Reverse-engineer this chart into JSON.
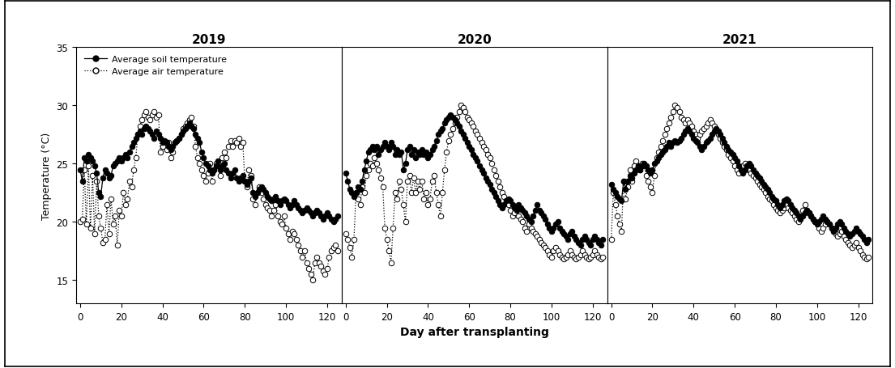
{
  "years": [
    "2019",
    "2020",
    "2021"
  ],
  "ylabel": "Temperature (°C)",
  "xlabel": "Day after transplanting",
  "ylim": [
    13,
    35
  ],
  "yticks": [
    15,
    20,
    25,
    30,
    35
  ],
  "xlim": [
    -2,
    127
  ],
  "xticks": [
    0,
    20,
    40,
    60,
    80,
    100,
    120
  ],
  "legend_soil": "Average soil temperature",
  "legend_air": "Average air temperature",
  "soil_2019": [
    24.5,
    23.5,
    25.5,
    25.2,
    25.8,
    25.5,
    25.2,
    24.8,
    24.2,
    22.5,
    22.2,
    23.8,
    24.5,
    24.2,
    23.8,
    24.0,
    24.8,
    25.0,
    25.2,
    25.5,
    25.2,
    25.5,
    25.8,
    25.5,
    26.0,
    26.5,
    26.8,
    27.2,
    27.5,
    27.8,
    27.5,
    28.0,
    28.2,
    28.0,
    27.8,
    27.5,
    27.2,
    27.8,
    27.5,
    27.2,
    26.8,
    27.0,
    26.8,
    26.5,
    26.2,
    26.5,
    26.8,
    27.0,
    27.2,
    27.5,
    27.8,
    28.0,
    28.2,
    28.5,
    28.2,
    28.0,
    27.5,
    27.2,
    26.8,
    26.0,
    25.5,
    25.0,
    24.8,
    24.5,
    24.2,
    24.5,
    24.8,
    25.2,
    24.5,
    24.8,
    25.0,
    24.5,
    24.2,
    23.8,
    24.2,
    24.5,
    23.8,
    23.5,
    23.8,
    24.0,
    23.5,
    23.2,
    23.5,
    23.8,
    22.5,
    22.2,
    22.5,
    22.8,
    23.0,
    22.8,
    22.5,
    22.2,
    22.0,
    21.8,
    22.0,
    22.2,
    21.8,
    21.5,
    21.8,
    22.0,
    21.8,
    21.5,
    21.2,
    21.5,
    21.8,
    21.5,
    21.2,
    21.0,
    20.8,
    21.0,
    21.2,
    21.0,
    20.8,
    20.5,
    20.8,
    21.0,
    20.8,
    20.5,
    20.2,
    20.5,
    20.8,
    20.5,
    20.2,
    20.0,
    20.2,
    20.5
  ],
  "air_2019": [
    20.0,
    20.2,
    24.5,
    19.8,
    24.8,
    19.5,
    24.0,
    19.0,
    23.5,
    20.5,
    19.5,
    18.2,
    18.5,
    21.5,
    19.0,
    22.0,
    19.8,
    20.5,
    18.0,
    21.0,
    20.5,
    22.5,
    21.5,
    22.0,
    23.5,
    23.0,
    24.5,
    25.5,
    27.5,
    28.2,
    28.8,
    29.2,
    29.5,
    29.0,
    28.8,
    29.2,
    29.5,
    29.0,
    29.2,
    26.0,
    26.5,
    27.0,
    26.2,
    26.8,
    25.5,
    26.0,
    26.8,
    27.0,
    27.2,
    27.5,
    28.0,
    28.2,
    28.5,
    28.8,
    29.0,
    28.2,
    26.5,
    25.5,
    25.0,
    24.5,
    24.0,
    23.5,
    24.2,
    25.0,
    23.5,
    24.5,
    25.0,
    24.8,
    24.0,
    25.5,
    26.0,
    25.5,
    26.5,
    27.0,
    26.5,
    27.0,
    26.8,
    27.2,
    26.5,
    26.8,
    23.5,
    23.0,
    24.5,
    24.0,
    22.0,
    21.5,
    22.5,
    23.0,
    22.5,
    22.0,
    21.5,
    21.2,
    21.0,
    20.5,
    21.0,
    21.5,
    20.5,
    20.0,
    19.8,
    20.5,
    19.5,
    19.0,
    18.5,
    19.2,
    19.0,
    18.5,
    18.0,
    17.5,
    17.0,
    17.5,
    16.5,
    16.0,
    15.5,
    15.0,
    16.5,
    17.0,
    16.5,
    16.2,
    15.8,
    15.5,
    16.0,
    17.0,
    17.5,
    17.8,
    18.0,
    17.5
  ],
  "soil_2020": [
    24.2,
    23.5,
    22.8,
    22.5,
    22.2,
    22.5,
    23.0,
    22.8,
    23.5,
    24.5,
    25.2,
    26.0,
    26.2,
    26.5,
    26.2,
    26.5,
    25.8,
    26.2,
    26.5,
    26.8,
    26.5,
    26.2,
    26.8,
    26.5,
    25.8,
    26.2,
    25.8,
    26.0,
    24.5,
    25.0,
    26.2,
    26.5,
    25.8,
    26.2,
    25.5,
    26.0,
    25.8,
    26.2,
    25.8,
    26.0,
    25.5,
    25.8,
    26.2,
    26.5,
    27.0,
    27.5,
    27.8,
    28.0,
    28.5,
    28.8,
    29.0,
    29.2,
    29.0,
    28.8,
    28.5,
    28.2,
    27.8,
    27.5,
    27.2,
    26.8,
    26.5,
    26.2,
    25.8,
    25.5,
    25.2,
    24.8,
    24.5,
    24.2,
    23.8,
    23.5,
    23.2,
    22.8,
    22.5,
    22.2,
    21.8,
    21.5,
    21.2,
    21.5,
    21.8,
    22.0,
    21.8,
    21.5,
    21.2,
    21.0,
    21.5,
    21.2,
    21.0,
    20.8,
    20.5,
    20.2,
    20.0,
    20.5,
    21.0,
    21.5,
    21.0,
    20.8,
    20.5,
    20.2,
    19.8,
    19.5,
    19.2,
    19.5,
    19.8,
    20.0,
    19.5,
    19.2,
    19.0,
    18.8,
    18.5,
    19.0,
    19.2,
    18.8,
    18.5,
    18.2,
    18.0,
    18.5,
    18.8,
    18.5,
    18.2,
    18.0,
    18.5,
    18.8,
    18.5,
    18.2,
    18.0,
    18.5
  ],
  "air_2020": [
    19.0,
    18.5,
    17.8,
    17.0,
    18.5,
    22.5,
    22.0,
    21.5,
    23.0,
    22.5,
    24.0,
    24.5,
    25.0,
    24.8,
    25.5,
    25.0,
    24.5,
    23.8,
    23.0,
    19.5,
    18.5,
    17.5,
    16.5,
    19.5,
    22.5,
    22.0,
    23.5,
    22.8,
    21.5,
    20.0,
    23.5,
    24.0,
    22.5,
    23.8,
    22.5,
    23.5,
    22.8,
    23.5,
    22.0,
    22.5,
    21.5,
    22.0,
    23.5,
    24.0,
    22.5,
    21.5,
    20.5,
    22.5,
    24.5,
    26.0,
    27.0,
    27.5,
    28.0,
    28.5,
    29.0,
    29.5,
    30.0,
    29.8,
    29.5,
    29.0,
    28.8,
    28.5,
    28.2,
    27.8,
    27.5,
    27.2,
    26.8,
    26.5,
    26.2,
    25.8,
    25.5,
    25.0,
    24.5,
    24.0,
    23.5,
    23.0,
    22.5,
    22.2,
    21.8,
    21.5,
    21.0,
    20.5,
    20.8,
    21.2,
    20.5,
    20.2,
    20.0,
    19.5,
    19.2,
    19.8,
    19.5,
    19.2,
    19.0,
    18.8,
    18.5,
    18.2,
    18.0,
    17.8,
    17.5,
    17.2,
    17.0,
    17.5,
    17.8,
    17.5,
    17.2,
    17.0,
    16.8,
    17.0,
    17.2,
    17.5,
    17.2,
    17.0,
    16.8,
    17.0,
    17.2,
    17.5,
    17.2,
    17.0,
    16.8,
    17.0,
    17.2,
    17.5,
    17.2,
    17.0,
    16.8,
    17.0
  ],
  "soil_2021": [
    23.2,
    22.8,
    22.5,
    22.2,
    22.0,
    21.8,
    23.5,
    22.8,
    23.5,
    24.0,
    23.8,
    24.2,
    24.5,
    24.8,
    24.5,
    24.8,
    25.0,
    24.8,
    24.5,
    24.2,
    24.5,
    25.0,
    25.2,
    25.5,
    25.8,
    26.0,
    26.2,
    26.5,
    26.8,
    26.5,
    26.8,
    27.0,
    26.8,
    27.0,
    27.2,
    27.5,
    27.8,
    28.0,
    27.8,
    27.5,
    27.2,
    27.0,
    26.8,
    26.5,
    26.2,
    26.5,
    26.8,
    27.0,
    27.2,
    27.5,
    27.8,
    28.0,
    27.8,
    27.5,
    27.2,
    26.8,
    26.5,
    26.2,
    26.0,
    25.8,
    25.5,
    25.2,
    24.8,
    24.5,
    24.2,
    24.5,
    24.8,
    25.0,
    24.8,
    24.5,
    24.2,
    24.0,
    23.8,
    23.5,
    23.2,
    23.0,
    22.8,
    22.5,
    22.2,
    22.0,
    21.8,
    21.5,
    21.2,
    21.5,
    21.8,
    22.0,
    21.8,
    21.5,
    21.2,
    21.0,
    20.8,
    20.5,
    20.2,
    20.5,
    20.8,
    21.0,
    20.8,
    20.5,
    20.2,
    20.0,
    19.8,
    20.0,
    20.2,
    20.5,
    20.2,
    20.0,
    19.8,
    19.5,
    19.2,
    19.5,
    19.8,
    20.0,
    19.8,
    19.5,
    19.2,
    19.0,
    18.8,
    19.0,
    19.2,
    19.5,
    19.2,
    19.0,
    18.8,
    18.5,
    18.2,
    18.5
  ],
  "air_2021": [
    18.5,
    22.5,
    21.5,
    20.5,
    19.8,
    19.2,
    23.5,
    22.0,
    23.0,
    24.5,
    23.5,
    24.8,
    25.2,
    24.8,
    24.5,
    25.0,
    24.8,
    24.0,
    23.5,
    23.0,
    22.5,
    24.0,
    25.5,
    26.0,
    26.5,
    27.0,
    27.5,
    28.0,
    28.5,
    29.0,
    29.5,
    30.0,
    29.8,
    29.5,
    29.0,
    28.8,
    28.5,
    28.8,
    28.5,
    28.2,
    27.8,
    27.5,
    27.2,
    27.5,
    27.8,
    28.0,
    28.2,
    28.5,
    28.8,
    28.5,
    28.2,
    27.8,
    27.5,
    27.2,
    26.8,
    26.5,
    26.2,
    25.8,
    25.5,
    25.2,
    24.8,
    24.5,
    24.2,
    24.5,
    24.8,
    25.0,
    24.8,
    24.5,
    24.2,
    24.0,
    23.8,
    23.5,
    23.2,
    23.0,
    22.8,
    22.5,
    22.2,
    22.0,
    21.8,
    21.5,
    21.2,
    21.0,
    20.8,
    21.0,
    21.2,
    21.5,
    21.2,
    21.0,
    20.8,
    20.5,
    20.2,
    20.0,
    20.5,
    21.0,
    21.5,
    21.0,
    20.8,
    20.5,
    20.2,
    20.0,
    19.8,
    19.5,
    19.2,
    19.5,
    19.8,
    20.0,
    19.8,
    19.5,
    19.2,
    19.0,
    18.8,
    19.0,
    19.2,
    18.8,
    18.5,
    18.2,
    18.0,
    17.8,
    18.0,
    18.2,
    17.8,
    17.5,
    17.2,
    17.0,
    16.8,
    17.0
  ]
}
